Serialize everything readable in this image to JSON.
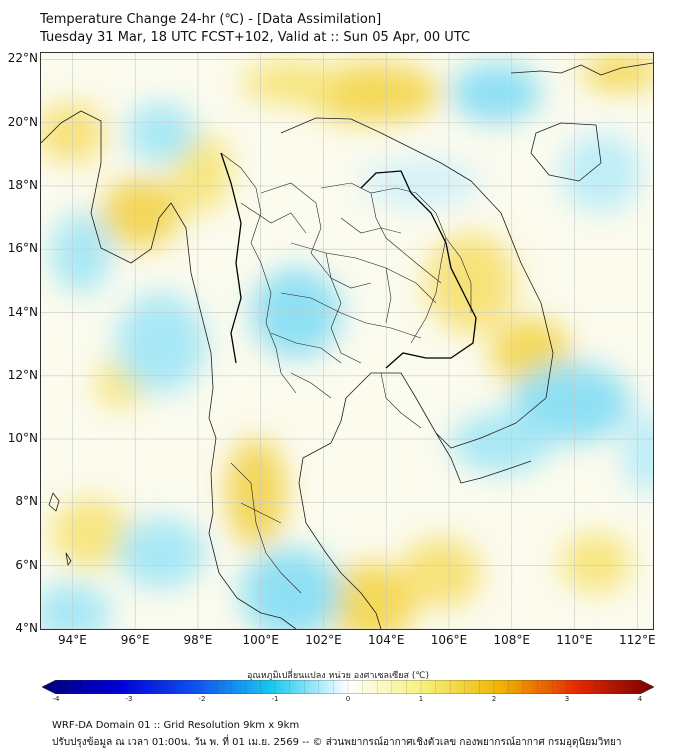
{
  "title_line1": "Temperature Change 24-hr (℃) - [Data Assimilation]",
  "title_line2": "Tuesday 31 Mar, 18 UTC FCST+102, Valid at :: Sun 05 Apr, 00 UTC",
  "map": {
    "lon_range": [
      93,
      112.5
    ],
    "lat_range": [
      4,
      22.2
    ],
    "lat_ticks": [
      {
        "value": 22,
        "label": "22°N"
      },
      {
        "value": 20,
        "label": "20°N"
      },
      {
        "value": 18,
        "label": "18°N"
      },
      {
        "value": 16,
        "label": "16°N"
      },
      {
        "value": 14,
        "label": "14°N"
      },
      {
        "value": 12,
        "label": "12°N"
      },
      {
        "value": 10,
        "label": "10°N"
      },
      {
        "value": 8,
        "label": "8°N"
      },
      {
        "value": 6,
        "label": "6°N"
      },
      {
        "value": 4,
        "label": "4°N"
      }
    ],
    "lon_ticks": [
      {
        "value": 94,
        "label": "94°E"
      },
      {
        "value": 96,
        "label": "96°E"
      },
      {
        "value": 98,
        "label": "98°E"
      },
      {
        "value": 100,
        "label": "100°E"
      },
      {
        "value": 102,
        "label": "102°E"
      },
      {
        "value": 104,
        "label": "104°E"
      },
      {
        "value": 106,
        "label": "106°E"
      },
      {
        "value": 108,
        "label": "108°E"
      },
      {
        "value": 110,
        "label": "110°E"
      },
      {
        "value": 112,
        "label": "112°E"
      }
    ],
    "gridlines": true
  },
  "colorbar": {
    "label": "อุณหภูมิเปลี่ยนแปลง หน่วย องศาเซลเซียส (℃)",
    "min": -4,
    "max": 4,
    "ticks": [
      {
        "value": -4,
        "label": "-4"
      },
      {
        "value": -3,
        "label": "-3"
      },
      {
        "value": -2,
        "label": "-2"
      },
      {
        "value": -1,
        "label": "-1"
      },
      {
        "value": 0,
        "label": "0"
      },
      {
        "value": 1,
        "label": "1"
      },
      {
        "value": 2,
        "label": "2"
      },
      {
        "value": 3,
        "label": "3"
      },
      {
        "value": 4,
        "label": "4"
      }
    ],
    "colors": [
      "#00007a",
      "#0000d8",
      "#1050f0",
      "#19c8f0",
      "#ffffff",
      "#f5f07a",
      "#f0b400",
      "#e62800",
      "#780000"
    ]
  },
  "footer_line1": "WRF-DA Domain 01 :: Grid Resolution 9km x 9km",
  "footer_line2": "ปรับปรุงข้อมูล ณ เวลา 01:00น. วัน พ. ที่ 01 เม.ย. 2569 -- © ส่วนพยากรณ์อากาศเชิงตัวเลข กองพยากรณ์อากาศ กรมอุตุนิยมวิทยา"
}
